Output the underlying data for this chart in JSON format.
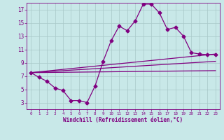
{
  "xlabel": "Windchill (Refroidissement éolien,°C)",
  "x": [
    0,
    1,
    2,
    3,
    4,
    5,
    6,
    7,
    8,
    9,
    10,
    11,
    12,
    13,
    14,
    15,
    16,
    17,
    18,
    19,
    20,
    21,
    22,
    23
  ],
  "line_main": [
    7.5,
    6.8,
    6.2,
    5.2,
    4.8,
    3.3,
    3.3,
    3.0,
    5.5,
    9.2,
    12.3,
    14.5,
    13.8,
    15.3,
    17.8,
    17.8,
    16.5,
    14.0,
    14.3,
    13.0,
    10.5,
    10.3,
    10.2,
    10.2
  ],
  "trend1_y": [
    7.5,
    10.3
  ],
  "trend2_y": [
    7.5,
    9.2
  ],
  "trend3_y": [
    7.5,
    7.8
  ],
  "bg_color": "#c8e8e8",
  "line_color": "#800080",
  "grid_color": "#a8c8c8",
  "ylim": [
    2,
    18
  ],
  "yticks": [
    3,
    5,
    7,
    9,
    11,
    13,
    15,
    17
  ],
  "xlim": [
    -0.5,
    23.5
  ],
  "marker_size": 2.5,
  "lw": 0.9
}
